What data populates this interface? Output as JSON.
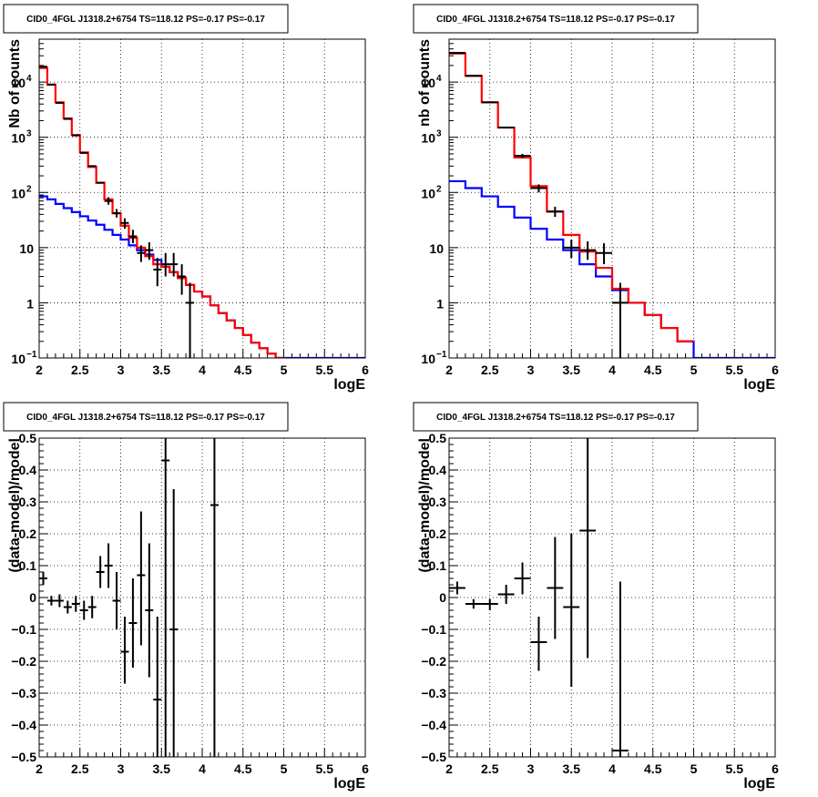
{
  "chart_data": [
    {
      "type": "line",
      "title": "CID0_4FGL J1318.2+6754 TS=118.12 PS=-0.17 PS=-0.17",
      "xlabel": "logE",
      "ylabel": "Nb of counts",
      "xlim": [
        2,
        6
      ],
      "ylim": [
        0.1,
        60000
      ],
      "yscale": "log",
      "grid": true,
      "x_ticks": [
        "2",
        "2.5",
        "3",
        "3.5",
        "4",
        "4.5",
        "5",
        "5.5",
        "6"
      ],
      "y_ticks": [
        {
          "v": 0.1,
          "base": "10",
          "exp": "−1"
        },
        {
          "v": 1,
          "base": "1",
          "exp": ""
        },
        {
          "v": 10,
          "base": "10",
          "exp": ""
        },
        {
          "v": 100,
          "base": "10",
          "exp": "2"
        },
        {
          "v": 1000,
          "base": "10",
          "exp": "3"
        },
        {
          "v": 10000,
          "base": "10",
          "exp": "4"
        }
      ],
      "bin_edges": [
        2,
        2.1,
        2.2,
        2.3,
        2.4,
        2.5,
        2.6,
        2.7,
        2.8,
        2.9,
        3,
        3.1,
        3.2,
        3.3,
        3.4,
        3.5,
        3.6,
        3.7,
        3.8,
        3.9,
        4,
        4.1,
        4.2,
        4.3,
        4.4,
        4.5,
        4.6,
        4.7,
        4.8,
        4.9,
        5,
        5.1,
        5.2,
        5.3,
        5.4,
        5.5,
        5.6,
        5.7,
        5.8,
        5.9,
        6
      ],
      "series": [
        {
          "color": "#0000ff",
          "style": "step",
          "values": [
            85,
            75,
            62,
            52,
            44,
            37,
            31,
            26,
            21,
            17,
            14,
            11,
            9,
            7.5,
            6,
            4.5,
            3.6,
            2.8,
            2.1,
            1.6,
            1.3,
            0.9,
            0.65,
            0.48,
            0.35,
            0.26,
            0.19,
            0.15,
            0.12,
            0.1,
            0.1,
            0.1,
            0.1,
            0.1,
            0.1,
            0.1,
            0.1,
            0.1,
            0.1,
            0.1
          ]
        },
        {
          "color": "#ff0000",
          "style": "step",
          "values": [
            18000,
            9000,
            4300,
            2200,
            1100,
            530,
            290,
            150,
            75,
            42,
            25,
            15,
            10,
            7,
            5,
            4.5,
            3.6,
            2.8,
            2.1,
            1.6,
            1.3,
            0.9,
            0.65,
            0.48,
            0.35,
            0.26,
            0.19,
            0.15,
            0.12,
            0.1
          ]
        },
        {
          "color": "#000000",
          "style": "errorbar",
          "points": [
            {
              "x": 2.05,
              "y": 19000
            },
            {
              "x": 2.15,
              "y": 9000
            },
            {
              "x": 2.25,
              "y": 4200
            },
            {
              "x": 2.35,
              "y": 2150
            },
            {
              "x": 2.45,
              "y": 1080
            },
            {
              "x": 2.55,
              "y": 520
            },
            {
              "x": 2.65,
              "y": 300
            },
            {
              "x": 2.75,
              "y": 150
            },
            {
              "x": 2.85,
              "y": 70,
              "lo": 60,
              "hi": 82
            },
            {
              "x": 2.95,
              "y": 42,
              "lo": 35,
              "hi": 50
            },
            {
              "x": 3.05,
              "y": 28,
              "lo": 22,
              "hi": 34
            },
            {
              "x": 3.15,
              "y": 16,
              "lo": 12,
              "hi": 21
            },
            {
              "x": 3.25,
              "y": 8,
              "lo": 5.5,
              "hi": 11
            },
            {
              "x": 3.35,
              "y": 9,
              "lo": 6,
              "hi": 12.5
            },
            {
              "x": 3.45,
              "y": 4,
              "lo": 2,
              "hi": 6.5
            },
            {
              "x": 3.55,
              "y": 5,
              "lo": 3,
              "hi": 8
            },
            {
              "x": 3.65,
              "y": 5,
              "lo": 3,
              "hi": 8
            },
            {
              "x": 3.75,
              "y": 3,
              "lo": 1.4,
              "hi": 5
            },
            {
              "x": 3.85,
              "y": 1,
              "lo": 0.1,
              "hi": 2.3
            }
          ]
        }
      ]
    },
    {
      "type": "line",
      "title": "CID0_4FGL J1318.2+6754 TS=118.12 PS=-0.17 PS=-0.17",
      "xlabel": "logE",
      "ylabel": "nb of counts",
      "xlim": [
        2,
        6
      ],
      "ylim": [
        0.1,
        60000
      ],
      "yscale": "log",
      "grid": true,
      "x_ticks": [
        "2",
        "2.5",
        "3",
        "3.5",
        "4",
        "4.5",
        "5",
        "5.5",
        "6"
      ],
      "y_ticks": [
        {
          "v": 0.1,
          "base": "10",
          "exp": "−1"
        },
        {
          "v": 1,
          "base": "1",
          "exp": ""
        },
        {
          "v": 10,
          "base": "10",
          "exp": ""
        },
        {
          "v": 100,
          "base": "10",
          "exp": "2"
        },
        {
          "v": 1000,
          "base": "10",
          "exp": "3"
        },
        {
          "v": 10000,
          "base": "10",
          "exp": "4"
        }
      ],
      "bin_edges": [
        2,
        2.2,
        2.4,
        2.6,
        2.8,
        3,
        3.2,
        3.4,
        3.6,
        3.8,
        4,
        4.2,
        4.4,
        4.6,
        4.8,
        5,
        5.2,
        5.4,
        5.6,
        5.8,
        6
      ],
      "series": [
        {
          "color": "#0000ff",
          "style": "step",
          "values": [
            160,
            120,
            85,
            55,
            35,
            22,
            14,
            9,
            5,
            3,
            1.7,
            1,
            0.6,
            0.35,
            0.2,
            0.1,
            0.1,
            0.1,
            0.1,
            0.1
          ]
        },
        {
          "color": "#ff0000",
          "style": "step",
          "values": [
            33000,
            13000,
            4300,
            1500,
            430,
            130,
            45,
            17,
            8.5,
            4.3,
            1.8,
            1,
            0.6,
            0.35,
            0.2
          ]
        },
        {
          "color": "#000000",
          "style": "errorbar",
          "points": [
            {
              "x": 2.1,
              "y": 34000
            },
            {
              "x": 2.3,
              "y": 13000
            },
            {
              "x": 2.5,
              "y": 4300
            },
            {
              "x": 2.7,
              "y": 1500
            },
            {
              "x": 2.9,
              "y": 460,
              "lo": 420,
              "hi": 500
            },
            {
              "x": 3.1,
              "y": 120,
              "lo": 100,
              "hi": 140
            },
            {
              "x": 3.3,
              "y": 45,
              "lo": 36,
              "hi": 55
            },
            {
              "x": 3.5,
              "y": 10,
              "lo": 6.5,
              "hi": 14
            },
            {
              "x": 3.7,
              "y": 9,
              "lo": 6,
              "hi": 13
            },
            {
              "x": 3.9,
              "y": 8,
              "lo": 5,
              "hi": 12
            },
            {
              "x": 4.1,
              "y": 1,
              "lo": 0.1,
              "hi": 2.3
            }
          ]
        }
      ]
    },
    {
      "type": "scatter",
      "title": "CID0_4FGL J1318.2+6754 TS=118.12 PS=-0.17 PS=-0.17",
      "xlabel": "logE",
      "ylabel": "(data-model)/model",
      "xlim": [
        2,
        6
      ],
      "ylim": [
        -0.5,
        0.5
      ],
      "grid": true,
      "x_ticks": [
        "2",
        "2.5",
        "3",
        "3.5",
        "4",
        "4.5",
        "5",
        "5.5",
        "6"
      ],
      "y_ticks": [
        "−0.5",
        "−0.4",
        "−0.3",
        "−0.2",
        "−0.1",
        "0",
        "0.1",
        "0.2",
        "0.3",
        "0.4",
        "0.5"
      ],
      "xerr": 0.05,
      "points": [
        {
          "x": 2.05,
          "y": 0.06,
          "lo": 0.04,
          "hi": 0.08
        },
        {
          "x": 2.15,
          "y": -0.01,
          "lo": -0.025,
          "hi": 0.005
        },
        {
          "x": 2.25,
          "y": -0.01,
          "lo": -0.03,
          "hi": 0.01
        },
        {
          "x": 2.35,
          "y": -0.03,
          "lo": -0.05,
          "hi": -0.01
        },
        {
          "x": 2.45,
          "y": -0.02,
          "lo": -0.045,
          "hi": 0.005
        },
        {
          "x": 2.55,
          "y": -0.04,
          "lo": -0.07,
          "hi": -0.01
        },
        {
          "x": 2.65,
          "y": -0.03,
          "lo": -0.065,
          "hi": 0.005
        },
        {
          "x": 2.75,
          "y": 0.08,
          "lo": 0.03,
          "hi": 0.13
        },
        {
          "x": 2.85,
          "y": 0.1,
          "lo": 0.03,
          "hi": 0.17
        },
        {
          "x": 2.95,
          "y": -0.01,
          "lo": -0.1,
          "hi": 0.08
        },
        {
          "x": 3.05,
          "y": -0.17,
          "lo": -0.27,
          "hi": -0.06
        },
        {
          "x": 3.15,
          "y": -0.08,
          "lo": -0.22,
          "hi": 0.06
        },
        {
          "x": 3.25,
          "y": 0.07,
          "lo": -0.15,
          "hi": 0.27
        },
        {
          "x": 3.35,
          "y": -0.04,
          "lo": -0.25,
          "hi": 0.17
        },
        {
          "x": 3.45,
          "y": -0.32,
          "lo": -0.5,
          "hi": -0.06
        },
        {
          "x": 3.55,
          "y": 0.43,
          "lo": -0.5,
          "hi": 0.5
        },
        {
          "x": 3.65,
          "y": -0.1,
          "lo": -0.5,
          "hi": 0.34
        },
        {
          "x": 4.15,
          "y": 0.29,
          "lo": -0.5,
          "hi": 0.5
        }
      ]
    },
    {
      "type": "scatter",
      "title": "CID0_4FGL J1318.2+6754 TS=118.12 PS=-0.17 PS=-0.17",
      "xlabel": "logE",
      "ylabel": "(data-model)/model",
      "xlim": [
        2,
        6
      ],
      "ylim": [
        -0.5,
        0.5
      ],
      "grid": true,
      "x_ticks": [
        "2",
        "2.5",
        "3",
        "3.5",
        "4",
        "4.5",
        "5",
        "5.5",
        "6"
      ],
      "y_ticks": [
        "−0.5",
        "−0.4",
        "−0.3",
        "−0.2",
        "−0.1",
        "0",
        "0.1",
        "0.2",
        "0.3",
        "0.4",
        "0.5"
      ],
      "xerr": 0.1,
      "points": [
        {
          "x": 2.1,
          "y": 0.03,
          "lo": 0.01,
          "hi": 0.05
        },
        {
          "x": 2.3,
          "y": -0.02,
          "lo": -0.035,
          "hi": -0.005
        },
        {
          "x": 2.5,
          "y": -0.02,
          "lo": -0.04,
          "hi": -0.005
        },
        {
          "x": 2.7,
          "y": 0.01,
          "lo": -0.02,
          "hi": 0.04
        },
        {
          "x": 2.9,
          "y": 0.06,
          "lo": 0.01,
          "hi": 0.11
        },
        {
          "x": 3.1,
          "y": -0.14,
          "lo": -0.23,
          "hi": -0.06
        },
        {
          "x": 3.3,
          "y": 0.03,
          "lo": -0.13,
          "hi": 0.19
        },
        {
          "x": 3.5,
          "y": -0.03,
          "lo": -0.28,
          "hi": 0.2
        },
        {
          "x": 3.7,
          "y": 0.21,
          "lo": -0.19,
          "hi": 0.5
        },
        {
          "x": 4.1,
          "y": -0.48,
          "lo": -0.5,
          "hi": 0.05
        }
      ]
    }
  ]
}
